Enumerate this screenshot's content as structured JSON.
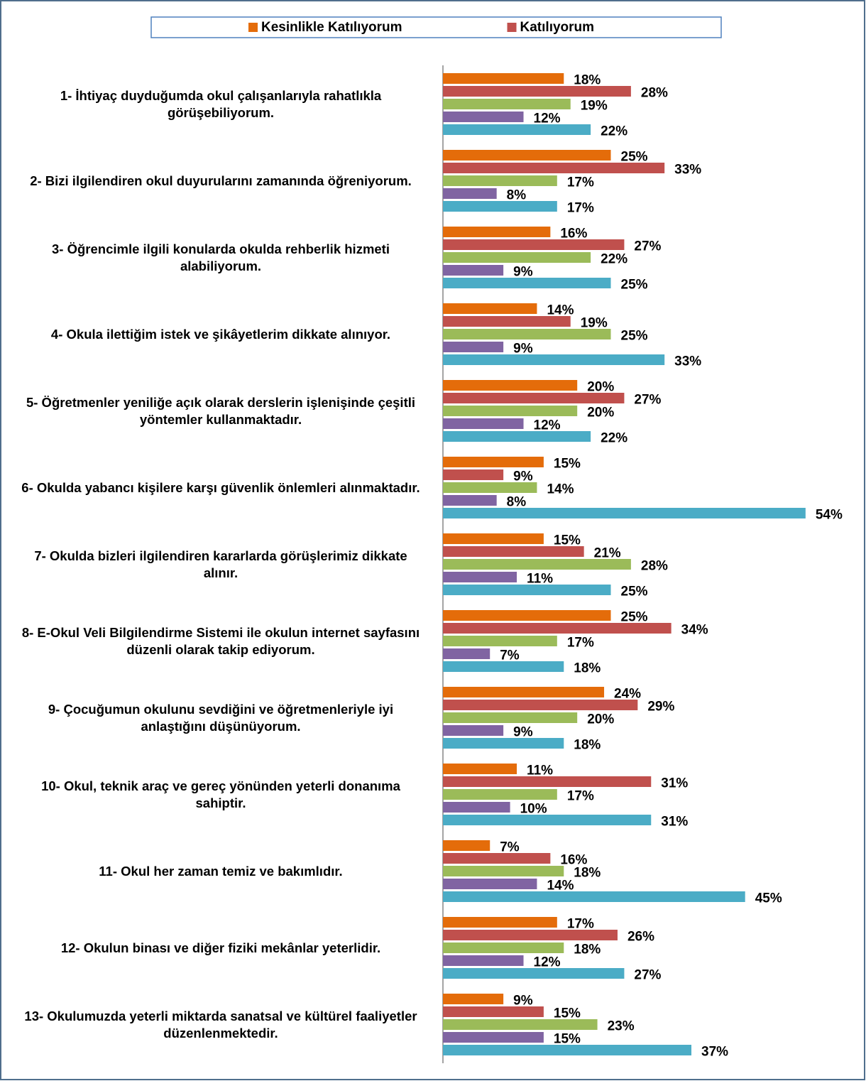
{
  "chart_data": {
    "type": "bar",
    "orientation": "horizontal",
    "categories": [
      "1- İhtiyaç duyduğumda okul çalışanlarıyla rahatlıkla görüşebiliyorum.",
      "2- Bizi ilgilendiren okul duyurularını zamanında öğreniyorum.",
      "3- Öğrencimle ilgili konularda okulda rehberlik hizmeti alabiliyorum.",
      "4- Okula ilettiğim istek ve şikâyetlerim dikkate alınıyor.",
      "5- Öğretmenler yeniliğe açık olarak derslerin işlenişinde çeşitli yöntemler kullanmaktadır.",
      "6- Okulda yabancı kişilere karşı güvenlik önlemleri alınmaktadır.",
      "7- Okulda bizleri ilgilendiren kararlarda görüşlerimiz dikkate alınır.",
      "8- E-Okul Veli Bilgilendirme Sistemi ile okulun internet sayfasını düzenli olarak takip ediyorum.",
      "9- Çocuğumun okulunu sevdiğini ve öğretmenleriyle iyi anlaştığını düşünüyorum.",
      "10- Okul, teknik araç ve gereç yönünden yeterli donanıma sahiptir.",
      "11- Okul her zaman temiz ve bakımlıdır.",
      "12- Okulun binası ve diğer fiziki mekânlar yeterlidir.",
      "13- Okulumuzda yeterli miktarda sanatsal ve kültürel faaliyetler düzenlenmektedir."
    ],
    "series": [
      {
        "name": "Kesinlikle Katılıyorum",
        "color": "#E46C0A",
        "values": [
          18,
          25,
          16,
          14,
          20,
          15,
          15,
          25,
          24,
          11,
          7,
          17,
          9
        ],
        "value_labels": [
          "18%",
          "25%",
          "16%",
          "14%",
          "20%",
          "15%",
          "15%",
          "25%",
          "24%",
          "11%",
          "7%",
          "17%",
          "9%"
        ]
      },
      {
        "name": "Katılıyorum",
        "color": "#C0504D",
        "values": [
          28,
          33,
          27,
          19,
          27,
          9,
          21,
          34,
          29,
          31,
          16,
          26,
          15
        ],
        "value_labels": [
          "28%",
          "33%",
          "27%",
          "19%",
          "27%",
          "9%",
          "21%",
          "34%",
          "29%",
          "31%",
          "16%",
          "26%",
          "15%"
        ]
      },
      {
        "color": "#9BBB59",
        "values": [
          19,
          17,
          22,
          25,
          20,
          14,
          28,
          17,
          20,
          17,
          18,
          18,
          23
        ],
        "value_labels": [
          "19%",
          "17%",
          "22%",
          "25%",
          "20%",
          "14%",
          "28%",
          "17%",
          "20%",
          "17%",
          "18%",
          "18%",
          "23%"
        ]
      },
      {
        "color": "#8064A2",
        "values": [
          12,
          8,
          9,
          9,
          12,
          8,
          11,
          7,
          9,
          10,
          14,
          12,
          15
        ],
        "value_labels": [
          "12%",
          "8%",
          "9%",
          "9%",
          "12%",
          "8%",
          "11%",
          "7%",
          "9%",
          "10%",
          "14%",
          "12%",
          "15%"
        ]
      },
      {
        "color": "#4BACC6",
        "values": [
          22,
          17,
          25,
          33,
          22,
          54,
          25,
          18,
          18,
          31,
          45,
          27,
          37
        ],
        "value_labels": [
          "22%",
          "17%",
          "25%",
          "33%",
          "22%",
          "54%",
          "25%",
          "18%",
          "18%",
          "31%",
          "45%",
          "27%",
          "37%"
        ]
      }
    ]
  }
}
